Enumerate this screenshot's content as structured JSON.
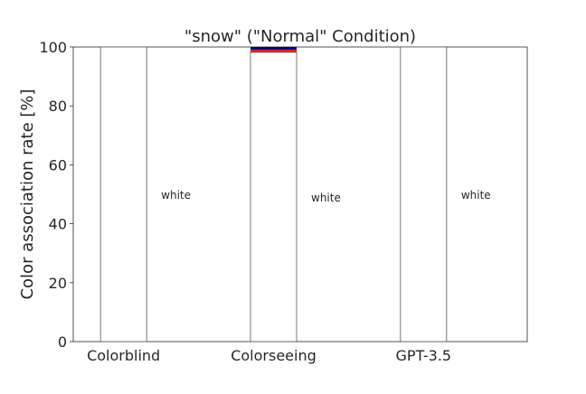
{
  "chart_data": {
    "type": "bar",
    "stacked": true,
    "title": "\"snow\" (\"Normal\" Condition)",
    "ylabel": "Color association rate [%]",
    "xlabel": "",
    "ylim": [
      0,
      100
    ],
    "yticks": [
      0,
      20,
      40,
      60,
      80,
      100
    ],
    "categories": [
      "Colorblind",
      "Colorseeing",
      "GPT-3.5"
    ],
    "series": [
      {
        "name": "white",
        "color": "#ffffff",
        "values": [
          100,
          98.2,
          100
        ],
        "label_values": [
          "white",
          "white",
          "white"
        ]
      },
      {
        "name": "",
        "color": "#d62728",
        "values": [
          0,
          0.9,
          0
        ]
      },
      {
        "name": "",
        "color": "#00008b",
        "values": [
          0,
          0.9,
          0
        ]
      }
    ],
    "grid": false
  }
}
